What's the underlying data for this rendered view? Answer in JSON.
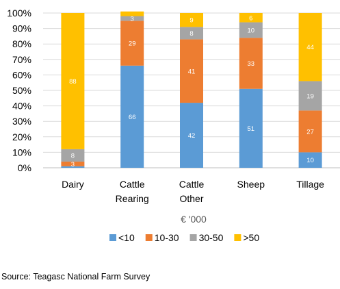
{
  "chart_data": {
    "type": "bar",
    "stacked": true,
    "percent": true,
    "categories": [
      [
        "Dairy"
      ],
      [
        "Cattle",
        "Rearing"
      ],
      [
        "Cattle",
        "Other"
      ],
      [
        "Sheep"
      ],
      [
        "Tillage"
      ]
    ],
    "series": [
      {
        "name": "<10",
        "color": "#5B9BD5",
        "values": [
          1,
          66,
          42,
          51,
          10
        ]
      },
      {
        "name": "10-30",
        "color": "#ED7D31",
        "values": [
          3,
          29,
          41,
          33,
          27
        ]
      },
      {
        "name": "30-50",
        "color": "#A5A5A5",
        "values": [
          8,
          3,
          8,
          10,
          19
        ]
      },
      {
        "name": ">50",
        "color": "#FFC000",
        "values": [
          88,
          3,
          9,
          6,
          44
        ]
      }
    ],
    "data_labels": [
      [
        "",
        "3",
        "8",
        "88"
      ],
      [
        "66",
        "29",
        "3",
        ""
      ],
      [
        "42",
        "41",
        "8",
        "9"
      ],
      [
        "51",
        "33",
        "10",
        "6"
      ],
      [
        "10",
        "27",
        "19",
        "44"
      ]
    ],
    "yticks": [
      "0%",
      "10%",
      "20%",
      "30%",
      "40%",
      "50%",
      "60%",
      "70%",
      "80%",
      "90%",
      "100%"
    ],
    "ylim": [
      0,
      100
    ],
    "xlabel": "€ '000",
    "grid": true,
    "legend_position": "bottom"
  },
  "source": "Source: Teagasc National Farm Survey"
}
